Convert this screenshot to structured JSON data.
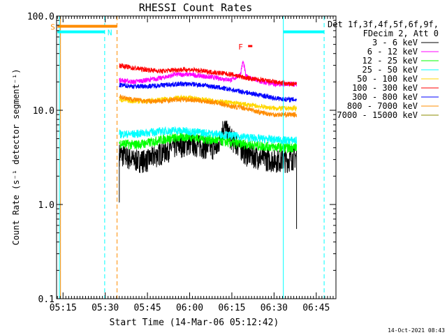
{
  "chart_data": {
    "type": "line",
    "title": "RHESSI Count Rates",
    "xlabel": "Start Time (14-Mar-06 05:12:42)",
    "ylabel": "Count Rate (s⁻¹ detector segment⁻¹)",
    "x_tick_labels": [
      "05:15",
      "05:30",
      "05:45",
      "06:00",
      "06:15",
      "06:30",
      "06:45"
    ],
    "x_ticks_minutes": [
      15,
      30,
      45,
      60,
      75,
      90,
      105
    ],
    "x_range_minutes": [
      12.7,
      112
    ],
    "y_scale": "log",
    "ylim": [
      0.1,
      100
    ],
    "y_tick_labels": [
      "0.1",
      "1.0",
      "10.0",
      "100.0"
    ],
    "y_ticks": [
      0.1,
      1,
      10,
      100
    ],
    "legend_header": [
      "Det 1f,3f,4f,5f,6f,9f,",
      "FDecim 2, Att 0"
    ],
    "legend_position": "right",
    "timestamp": "14-Oct-2021 08:43",
    "data_start_minutes": 35,
    "data_end_minutes": 98,
    "series": [
      {
        "name": "3 - 6 keV",
        "color": "#000000",
        "x": [
          35,
          40,
          45,
          50,
          55,
          60,
          65,
          70,
          72,
          75,
          80,
          85,
          90,
          95,
          98
        ],
        "y": [
          3.5,
          3.0,
          3.0,
          3.6,
          4.2,
          4.5,
          4.2,
          4.0,
          6.8,
          5.0,
          3.5,
          3.2,
          3.0,
          3.0,
          3.3
        ]
      },
      {
        "name": "6 - 12 keV",
        "color": "#ff00ff",
        "x": [
          35,
          40,
          45,
          50,
          55,
          60,
          65,
          70,
          75,
          78,
          79,
          80,
          85,
          90,
          95,
          98
        ],
        "y": [
          21,
          20,
          21,
          22,
          24,
          24,
          23,
          22,
          21,
          24,
          33,
          23,
          20,
          19,
          19,
          19
        ]
      },
      {
        "name": "12 - 25 keV",
        "color": "#00ff00",
        "x": [
          35,
          40,
          45,
          50,
          55,
          60,
          65,
          70,
          75,
          80,
          85,
          90,
          95,
          98
        ],
        "y": [
          4.5,
          4.3,
          4.5,
          4.9,
          5.1,
          5.3,
          5.0,
          4.8,
          4.5,
          4.4,
          4.2,
          4.1,
          4.0,
          4.1
        ]
      },
      {
        "name": "25 - 50 keV",
        "color": "#00ffff",
        "x": [
          35,
          40,
          45,
          50,
          55,
          60,
          65,
          70,
          75,
          80,
          85,
          90,
          95,
          98
        ],
        "y": [
          5.6,
          5.6,
          5.8,
          6.0,
          6.1,
          6.0,
          5.8,
          5.6,
          5.4,
          5.2,
          5.0,
          4.9,
          4.8,
          4.8
        ]
      },
      {
        "name": "50 - 100 keV",
        "color": "#ffd700",
        "x": [
          35,
          40,
          45,
          50,
          55,
          60,
          65,
          70,
          75,
          80,
          85,
          90,
          95,
          98
        ],
        "y": [
          13,
          12.5,
          12.5,
          13,
          13.5,
          13.5,
          13,
          12.5,
          12,
          11.5,
          11,
          10.5,
          10.5,
          10.5
        ]
      },
      {
        "name": "100 - 300 keV",
        "color": "#ff0000",
        "x": [
          35,
          40,
          45,
          50,
          55,
          60,
          65,
          70,
          75,
          80,
          85,
          90,
          95,
          98
        ],
        "y": [
          30,
          28,
          27,
          26,
          27,
          27,
          26,
          25,
          24,
          22,
          21,
          20,
          19,
          19
        ]
      },
      {
        "name": "300 - 800 keV",
        "color": "#0000ff",
        "x": [
          35,
          40,
          45,
          50,
          55,
          60,
          65,
          70,
          75,
          80,
          85,
          90,
          95,
          98
        ],
        "y": [
          18.5,
          18,
          18,
          18.5,
          19,
          19,
          18.5,
          17.5,
          16.5,
          15.5,
          14.5,
          13.5,
          13,
          13
        ]
      },
      {
        "name": "800 - 7000 keV",
        "color": "#ff8c00",
        "x": [
          35,
          40,
          45,
          50,
          55,
          60,
          65,
          70,
          75,
          80,
          85,
          90,
          95,
          98
        ],
        "y": [
          14,
          13,
          12.5,
          12.5,
          13,
          13,
          12.5,
          12,
          11,
          10.5,
          9.5,
          9,
          9,
          9
        ]
      },
      {
        "name": "7000 - 15000 keV",
        "color": "#8b8b00",
        "x": [],
        "y": []
      }
    ],
    "annotations": [
      {
        "text": "S",
        "color": "#ff8c00",
        "kind": "SAA interval",
        "x_start": 13.0,
        "x_end": 34.2,
        "level": 78
      },
      {
        "text": "N",
        "color": "#00ffff",
        "kind": "Night interval",
        "x_start": 13.0,
        "x_end": 29.8,
        "level": 68
      },
      {
        "text": "",
        "color": "#00ffff",
        "kind": "Night interval",
        "x_start": 93.3,
        "x_end": 107.8,
        "level": 68
      },
      {
        "text": "F",
        "color": "#ff0000",
        "kind": "Flare marker",
        "x_start": 77.8,
        "x_end": 79.3,
        "level": 48
      }
    ],
    "vlines": [
      {
        "x": 13.7,
        "color": "#00ffff",
        "style": "solid"
      },
      {
        "x": 14.1,
        "color": "#ff8c00",
        "style": "solid"
      },
      {
        "x": 29.8,
        "color": "#00ffff",
        "style": "dashed"
      },
      {
        "x": 34.2,
        "color": "#ff8c00",
        "style": "dashed"
      },
      {
        "x": 93.3,
        "color": "#00ffff",
        "style": "solid"
      },
      {
        "x": 107.8,
        "color": "#00ffff",
        "style": "dashed"
      }
    ]
  }
}
